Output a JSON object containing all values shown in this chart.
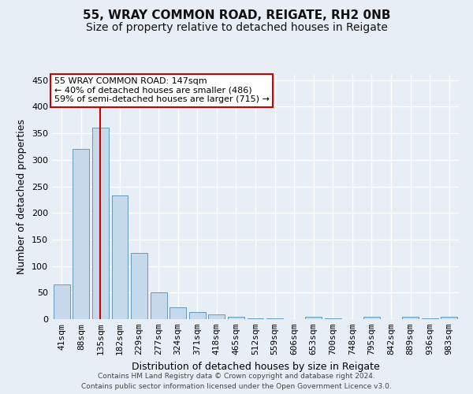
{
  "title1": "55, WRAY COMMON ROAD, REIGATE, RH2 0NB",
  "title2": "Size of property relative to detached houses in Reigate",
  "xlabel": "Distribution of detached houses by size in Reigate",
  "ylabel": "Number of detached properties",
  "footer1": "Contains HM Land Registry data © Crown copyright and database right 2024.",
  "footer2": "Contains public sector information licensed under the Open Government Licence v3.0.",
  "categories": [
    "41sqm",
    "88sqm",
    "135sqm",
    "182sqm",
    "229sqm",
    "277sqm",
    "324sqm",
    "371sqm",
    "418sqm",
    "465sqm",
    "512sqm",
    "559sqm",
    "606sqm",
    "653sqm",
    "700sqm",
    "748sqm",
    "795sqm",
    "842sqm",
    "889sqm",
    "936sqm",
    "983sqm"
  ],
  "values": [
    65,
    320,
    360,
    233,
    125,
    50,
    23,
    14,
    9,
    4,
    2,
    1,
    0,
    5,
    1,
    0,
    4,
    0,
    4,
    1,
    4
  ],
  "bar_color": "#c6d9ea",
  "bar_edge_color": "#6699bb",
  "ylim": [
    0,
    460
  ],
  "yticks": [
    0,
    50,
    100,
    150,
    200,
    250,
    300,
    350,
    400,
    450
  ],
  "vline_index": 2,
  "vline_color": "#cc0000",
  "annotation_title": "55 WRAY COMMON ROAD: 147sqm",
  "annotation_line1": "← 40% of detached houses are smaller (486)",
  "annotation_line2": "59% of semi-detached houses are larger (715) →",
  "annotation_box_facecolor": "#ffffff",
  "annotation_box_edgecolor": "#cc0000",
  "bg_color": "#e8eef6",
  "title_fontsize": 11,
  "subtitle_fontsize": 10,
  "xlabel_fontsize": 9,
  "ylabel_fontsize": 9,
  "tick_fontsize": 8,
  "annotation_fontsize": 8,
  "footer_fontsize": 6.5
}
